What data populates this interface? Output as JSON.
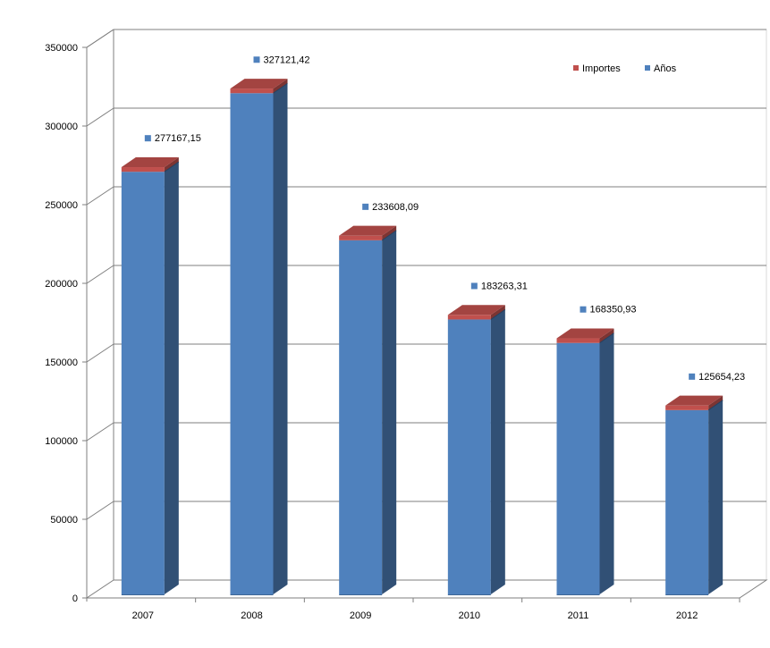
{
  "chart_data": {
    "type": "bar",
    "title": "",
    "xlabel": "",
    "ylabel": "",
    "categories": [
      "2007",
      "2008",
      "2009",
      "2010",
      "2011",
      "2012"
    ],
    "series": [
      {
        "name": "Importes",
        "values": [
          1800,
          1800,
          1800,
          1800,
          1800,
          1800
        ],
        "color": "#C0504D"
      },
      {
        "name": "Años",
        "values": [
          277167.15,
          327121.42,
          233608.09,
          183263.31,
          168350.93,
          125654.23
        ],
        "color": "#4F81BD"
      }
    ],
    "data_labels": [
      "277167,15",
      "327121,42",
      "233608,09",
      "183263,31",
      "168350,93",
      "125654,23"
    ],
    "ylim": [
      0,
      350000
    ],
    "yticks": [
      0,
      50000,
      100000,
      150000,
      200000,
      250000,
      300000,
      350000
    ],
    "grid": true,
    "legend_position": "top-right",
    "three_d": true
  }
}
